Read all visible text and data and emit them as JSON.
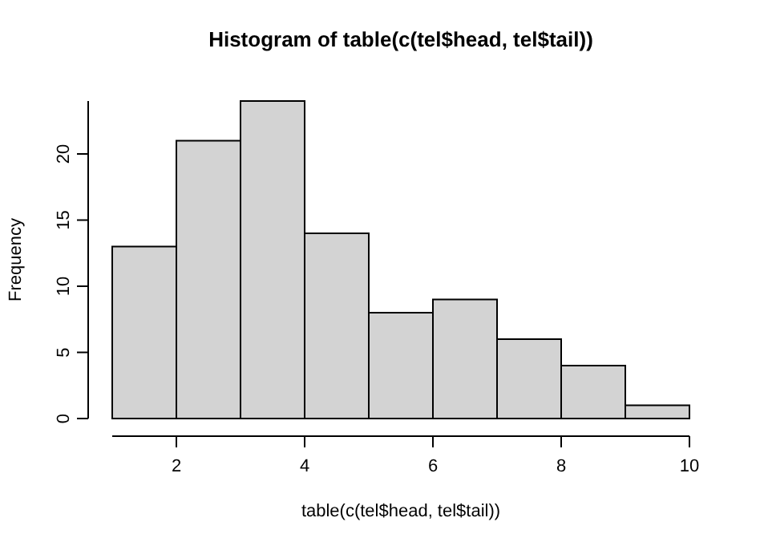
{
  "chart_data": {
    "type": "histogram",
    "title": "Histogram of table(c(tel$head, tel$tail))",
    "xlabel": "table(c(tel$head, tel$tail))",
    "ylabel": "Frequency",
    "bins": [
      1,
      2,
      3,
      4,
      5,
      6,
      7,
      8,
      9,
      10
    ],
    "values": [
      13,
      21,
      24,
      14,
      8,
      9,
      6,
      4,
      1
    ],
    "color": "#d3d3d3",
    "xlim": [
      1,
      10
    ],
    "xticks": [
      2,
      4,
      6,
      8,
      10
    ],
    "ylim": [
      0,
      24
    ],
    "yticks": [
      0,
      5,
      10,
      15,
      20
    ],
    "grid": false
  }
}
